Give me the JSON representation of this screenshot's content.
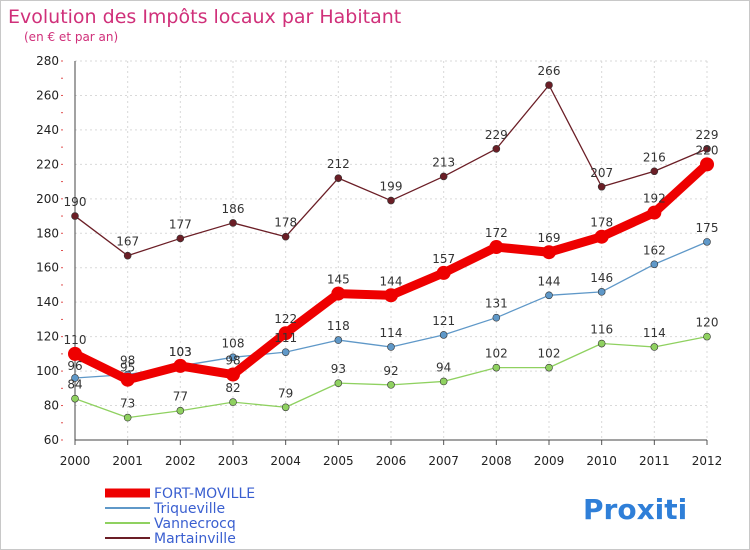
{
  "chart_data": {
    "type": "line",
    "title": "Evolution des Impôts locaux par Habitant",
    "subtitle": "(en € et par an)",
    "x": [
      "2000",
      "2001",
      "2002",
      "2003",
      "2004",
      "2005",
      "2006",
      "2007",
      "2008",
      "2009",
      "2010",
      "2011",
      "2012"
    ],
    "ylim": [
      60,
      280
    ],
    "yticks": [
      "60",
      "80",
      "100",
      "120",
      "140",
      "160",
      "180",
      "200",
      "220",
      "240",
      "260",
      "280"
    ],
    "grid": true,
    "legend_position": "bottom-left",
    "series": [
      {
        "name": "FORT-MOVILLE",
        "color": "#ee0000",
        "values": [
          110,
          95,
          103,
          98,
          122,
          145,
          144,
          157,
          172,
          169,
          178,
          192,
          220
        ]
      },
      {
        "name": "Triqueville",
        "color": "#5f98c8",
        "values": [
          96,
          98,
          103,
          108,
          111,
          118,
          114,
          121,
          131,
          144,
          146,
          162,
          175
        ]
      },
      {
        "name": "Vannecrocq",
        "color": "#8fd160",
        "values": [
          84,
          73,
          77,
          82,
          79,
          93,
          92,
          94,
          102,
          102,
          116,
          114,
          120
        ]
      },
      {
        "name": "Martainville",
        "color": "#6b1e26",
        "values": [
          190,
          167,
          177,
          186,
          178,
          212,
          199,
          213,
          229,
          266,
          207,
          216,
          229
        ]
      }
    ]
  },
  "logo": {
    "text": "Proxiti",
    "colors": [
      "#2f7fd8",
      "#e85a1c",
      "#6cb13a",
      "#e8a31c",
      "#2f7fd8",
      "#d8261c",
      "#6cb13a"
    ]
  }
}
